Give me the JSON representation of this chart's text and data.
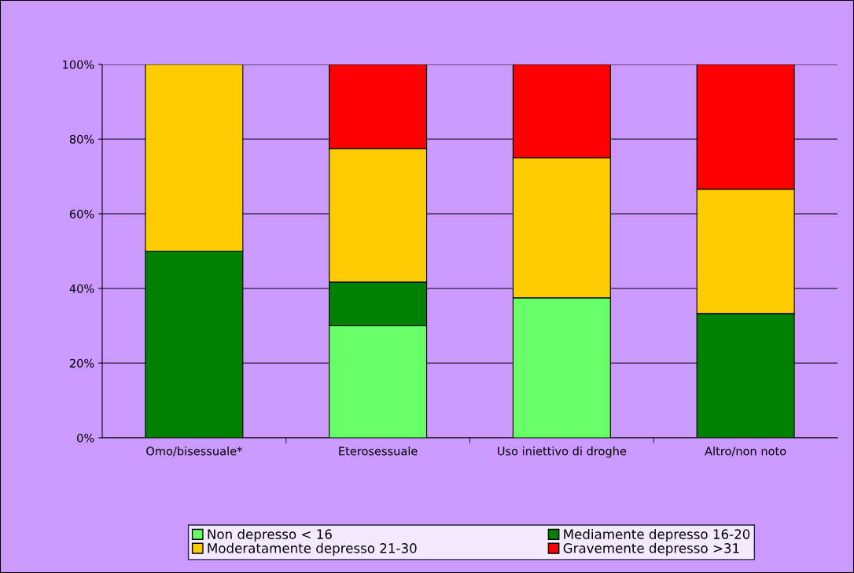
{
  "chart_data": {
    "type": "bar",
    "stacked": true,
    "categories": [
      "Omo/bisessuale*",
      "Eterosessuale",
      "Uso iniettivo di droghe",
      "Altro/non noto"
    ],
    "series": [
      {
        "name": "Non depresso < 16",
        "color": "#66ff66",
        "values": [
          0,
          30,
          37.5,
          0
        ]
      },
      {
        "name": "Mediamente depresso 16-20",
        "color": "#008000",
        "values": [
          50,
          11.7,
          0,
          33.3
        ]
      },
      {
        "name": "Moderatamente depresso 21-30",
        "color": "#ffcc00",
        "values": [
          50,
          35.8,
          37.5,
          33.3
        ]
      },
      {
        "name": "Gravemente depresso >31",
        "color": "#ff0000",
        "values": [
          0,
          22.5,
          25,
          33.4
        ]
      }
    ],
    "ylim": [
      0,
      100
    ],
    "yticks": [
      {
        "value": 0,
        "label": "0%"
      },
      {
        "value": 20,
        "label": "20%"
      },
      {
        "value": 40,
        "label": "40%"
      },
      {
        "value": 60,
        "label": "60%"
      },
      {
        "value": 80,
        "label": "80%"
      },
      {
        "value": 100,
        "label": "100%"
      }
    ],
    "grid": "y",
    "legend": "bottom"
  }
}
